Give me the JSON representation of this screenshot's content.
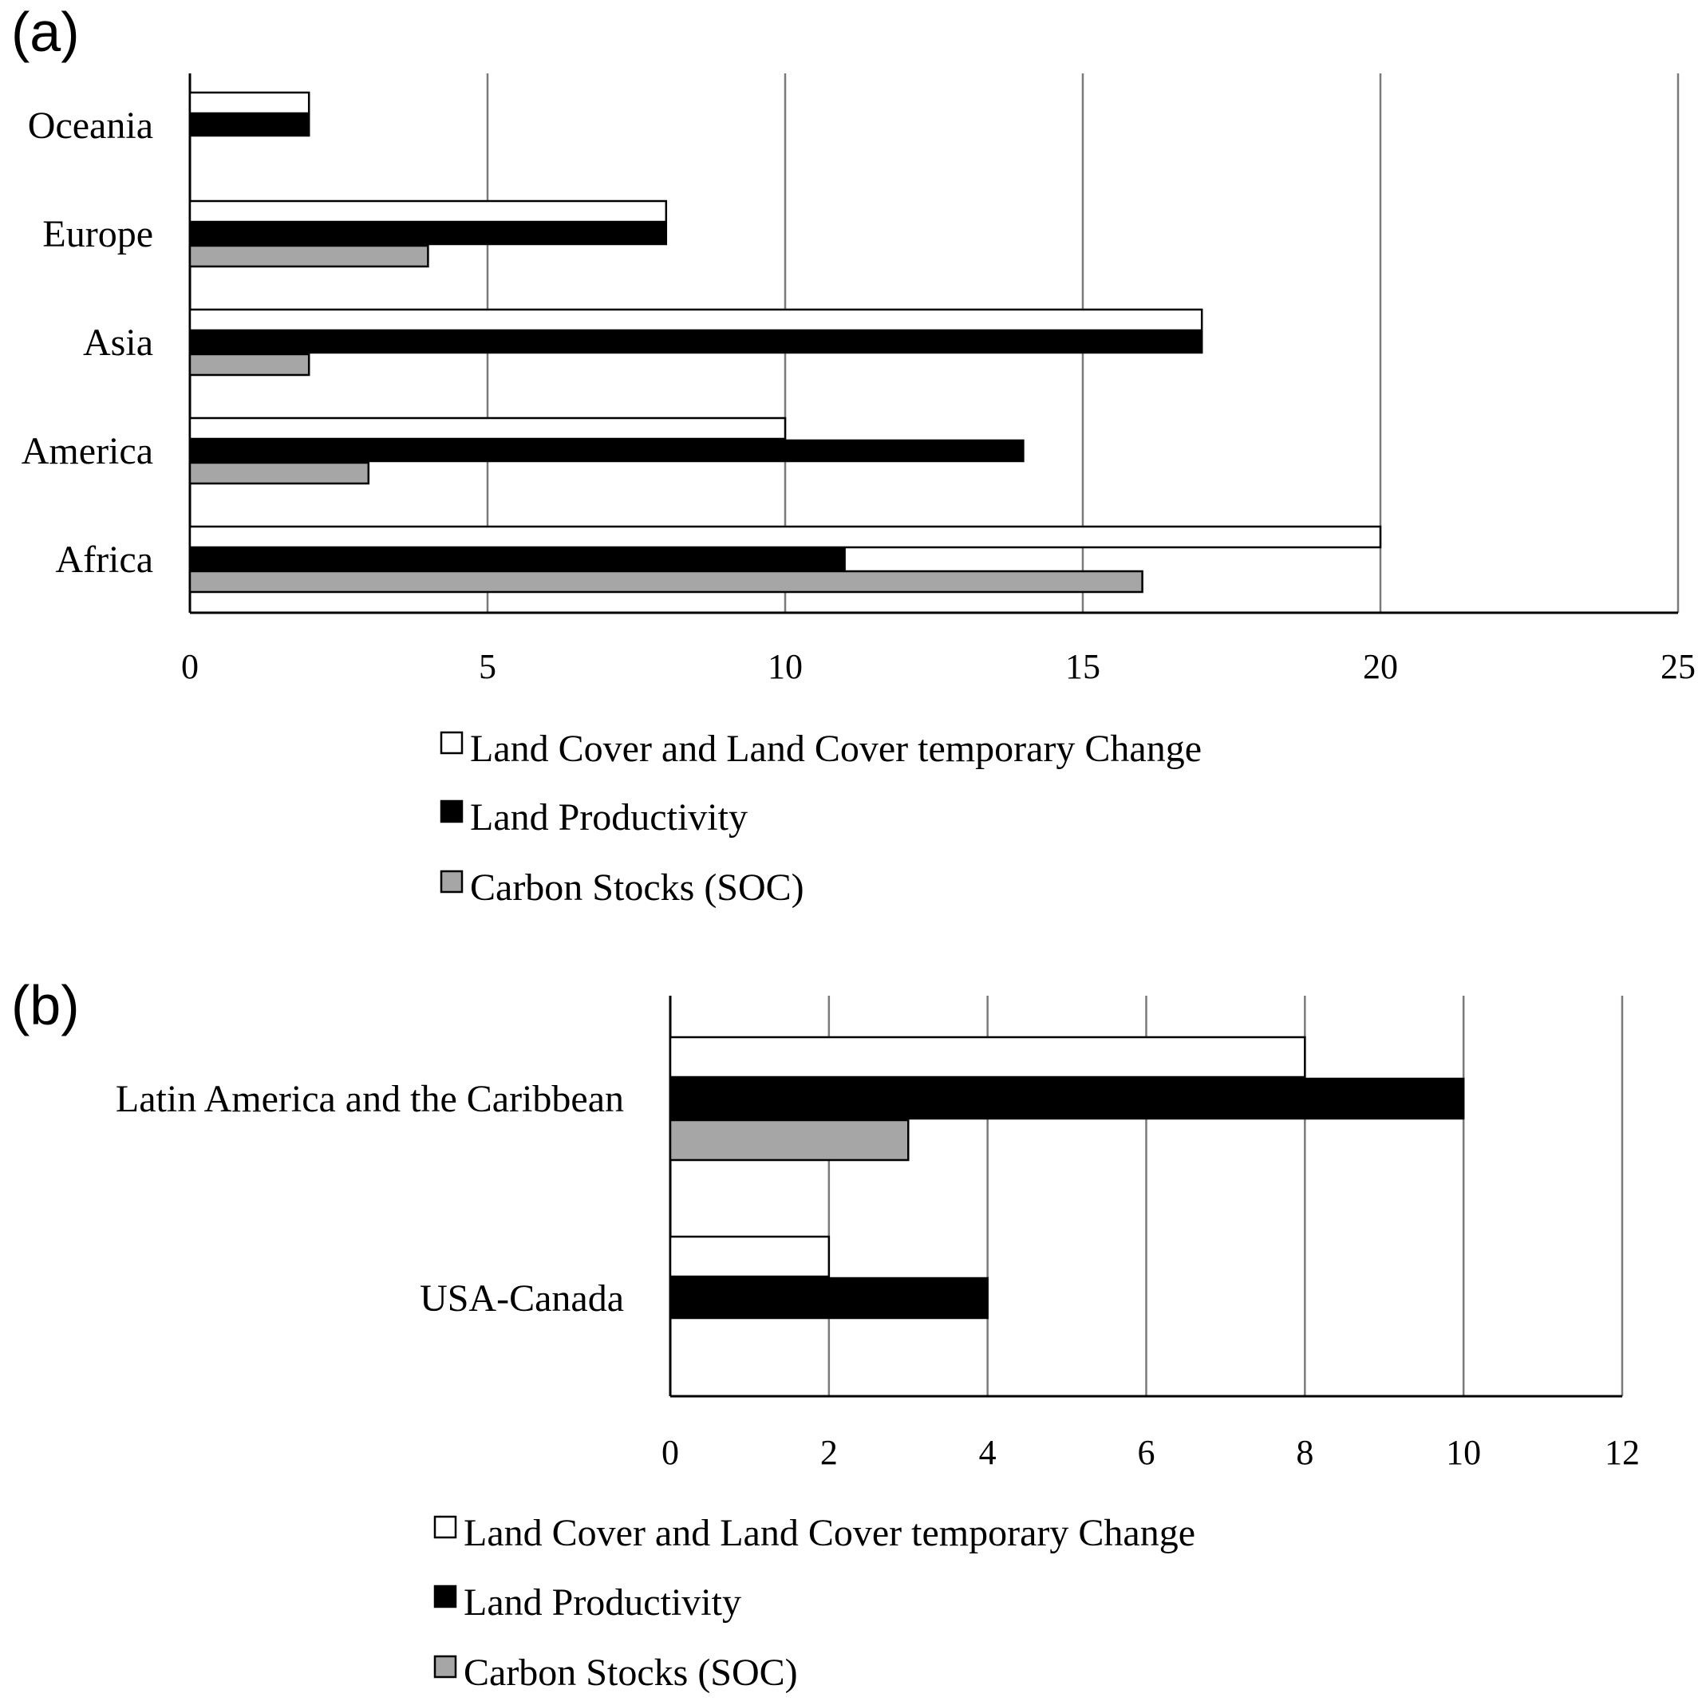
{
  "chart_data": [
    {
      "type": "bar",
      "orientation": "horizontal",
      "panel_label": "(a)",
      "categories": [
        "Oceania",
        "Europe",
        "Asia",
        "America",
        "Africa"
      ],
      "series": [
        {
          "name": "Land Cover and Land Cover temporary Change",
          "color": "#ffffff",
          "values": [
            2,
            8,
            17,
            10,
            20
          ]
        },
        {
          "name": "Land Productivity",
          "color": "#000000",
          "values": [
            2,
            8,
            17,
            14,
            11
          ]
        },
        {
          "name": "Carbon Stocks (SOC)",
          "color": "#a6a6a6",
          "values": [
            0,
            4,
            2,
            3,
            16
          ]
        }
      ],
      "xlim": [
        0,
        25
      ],
      "xticks": [
        "0",
        "5",
        "10",
        "15",
        "20",
        "25"
      ],
      "grid": true,
      "legend_position": "bottom"
    },
    {
      "type": "bar",
      "orientation": "horizontal",
      "panel_label": "(b)",
      "categories": [
        "Latin America and the Caribbean",
        "USA-Canada"
      ],
      "series": [
        {
          "name": "Land Cover and Land Cover temporary Change",
          "color": "#ffffff",
          "values": [
            8,
            2
          ]
        },
        {
          "name": "Land Productivity",
          "color": "#000000",
          "values": [
            10,
            4
          ]
        },
        {
          "name": "Carbon Stocks (SOC)",
          "color": "#a6a6a6",
          "values": [
            3,
            0
          ]
        }
      ],
      "xlim": [
        0,
        12
      ],
      "xticks": [
        "0",
        "2",
        "4",
        "6",
        "8",
        "10",
        "12"
      ],
      "grid": true,
      "legend_position": "bottom"
    }
  ]
}
